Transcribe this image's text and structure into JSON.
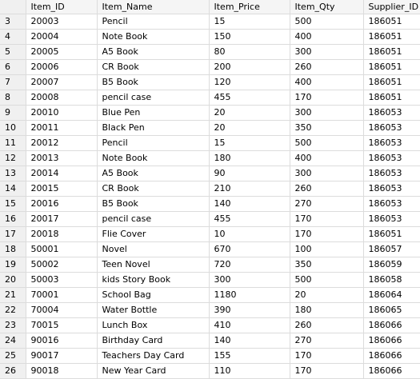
{
  "columns": [
    "Item_ID",
    "Item_Name",
    "Item_Price",
    "Item_Qty",
    "Supplier_ID"
  ],
  "rows": [
    {
      "num": "3",
      "cells": [
        "20003",
        "Pencil",
        "15",
        "500",
        "186051"
      ]
    },
    {
      "num": "4",
      "cells": [
        "20004",
        "Note Book",
        "150",
        "400",
        "186051"
      ]
    },
    {
      "num": "5",
      "cells": [
        "20005",
        "A5 Book",
        "80",
        "300",
        "186051"
      ]
    },
    {
      "num": "6",
      "cells": [
        "20006",
        "CR Book",
        "200",
        "260",
        "186051"
      ]
    },
    {
      "num": "7",
      "cells": [
        "20007",
        "B5 Book",
        "120",
        "400",
        "186051"
      ]
    },
    {
      "num": "8",
      "cells": [
        "20008",
        "pencil case",
        "455",
        "170",
        "186051"
      ]
    },
    {
      "num": "9",
      "cells": [
        "20010",
        "Blue Pen",
        "20",
        "300",
        "186053"
      ]
    },
    {
      "num": "10",
      "cells": [
        "20011",
        "Black Pen",
        "20",
        "350",
        "186053"
      ]
    },
    {
      "num": "11",
      "cells": [
        "20012",
        "Pencil",
        "15",
        "500",
        "186053"
      ]
    },
    {
      "num": "12",
      "cells": [
        "20013",
        "Note Book",
        "180",
        "400",
        "186053"
      ]
    },
    {
      "num": "13",
      "cells": [
        "20014",
        "A5 Book",
        "90",
        "300",
        "186053"
      ]
    },
    {
      "num": "14",
      "cells": [
        "20015",
        "CR Book",
        "210",
        "260",
        "186053"
      ]
    },
    {
      "num": "15",
      "cells": [
        "20016",
        "B5 Book",
        "140",
        "270",
        "186053"
      ]
    },
    {
      "num": "16",
      "cells": [
        "20017",
        "pencil case",
        "455",
        "170",
        "186053"
      ]
    },
    {
      "num": "17",
      "cells": [
        "20018",
        "Flie Cover",
        "10",
        "170",
        "186051"
      ]
    },
    {
      "num": "18",
      "cells": [
        "50001",
        "Novel",
        "670",
        "100",
        "186057"
      ]
    },
    {
      "num": "19",
      "cells": [
        "50002",
        "Teen Novel",
        "720",
        "350",
        "186059"
      ]
    },
    {
      "num": "20",
      "cells": [
        "50003",
        "kids Story Book",
        "300",
        "500",
        "186058"
      ]
    },
    {
      "num": "21",
      "cells": [
        "70001",
        "School Bag",
        "1180",
        "20",
        "186064"
      ]
    },
    {
      "num": "22",
      "cells": [
        "70004",
        "Water Bottle",
        "390",
        "180",
        "186065"
      ]
    },
    {
      "num": "23",
      "cells": [
        "70015",
        "Lunch Box",
        "410",
        "260",
        "186066"
      ]
    },
    {
      "num": "24",
      "cells": [
        "90016",
        "Birthday Card",
        "140",
        "270",
        "186066"
      ]
    },
    {
      "num": "25",
      "cells": [
        "90017",
        "Teachers Day Card",
        "155",
        "170",
        "186066"
      ]
    },
    {
      "num": "26",
      "cells": [
        "90018",
        "New Year Card",
        "110",
        "170",
        "186066"
      ]
    }
  ]
}
